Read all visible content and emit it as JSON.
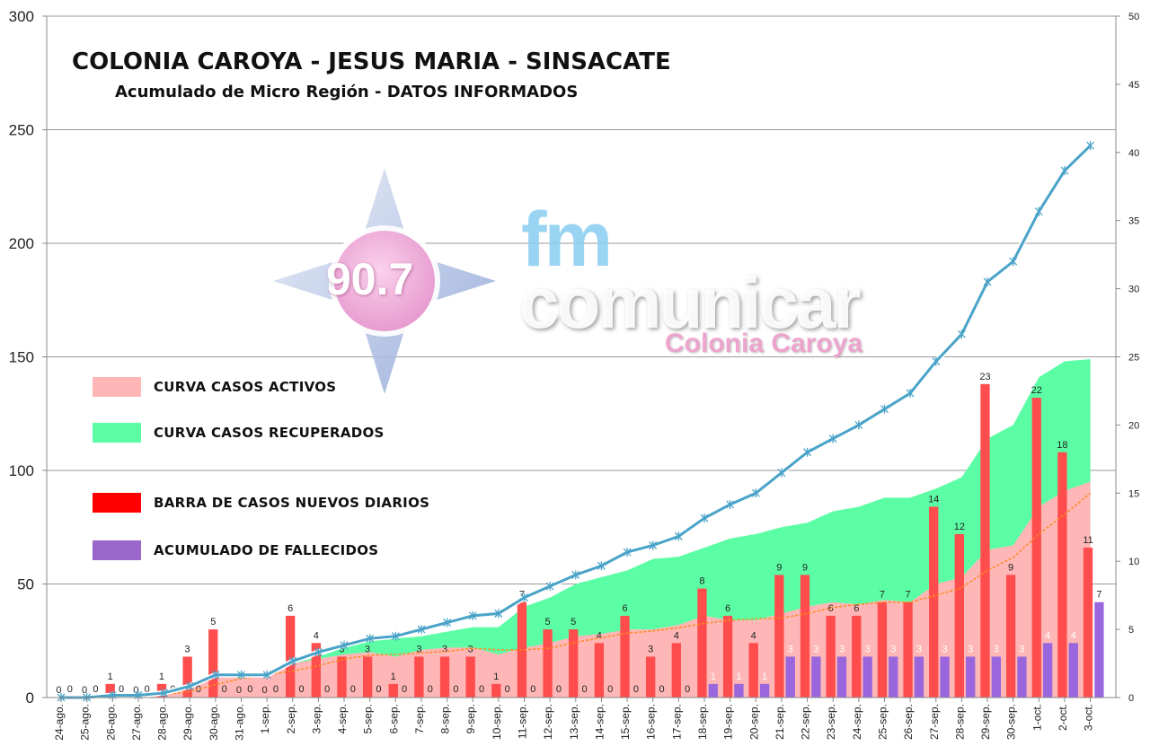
{
  "title": "COLONIA CAROYA - JESUS MARIA - SINSACATE",
  "subtitle": "Acumulado de Micro Región - DATOS INFORMADOS",
  "legend": [
    {
      "label": "CURVA CASOS ACTIVOS",
      "color": "#ffb6b6"
    },
    {
      "label": "CURVA CASOS RECUPERADOS",
      "color": "#5cfea5"
    },
    {
      "label": "BARRA DE CASOS NUEVOS DIARIOS",
      "color": "#ff0000"
    },
    {
      "label": "ACUMULADO DE FALLECIDOS",
      "color": "#9966cc"
    }
  ],
  "watermark": {
    "frequency": "90.7",
    "brand_top": "fm",
    "brand_name": "comunicar",
    "city": "Colonia Caroya"
  },
  "colors": {
    "active_area": "#ffb6b6",
    "recovered_area": "#5cfea5",
    "new_cases_bar": "#ff4c4c",
    "deaths_bar": "#9966dd",
    "total_line": "#4aa3c8",
    "trend_line": "#ff8a1e",
    "grid": "#9a9a9a"
  },
  "chart_data": {
    "type": "bar",
    "categories": [
      "24-ago.",
      "25-ago.",
      "26-ago.",
      "27-ago.",
      "28-ago.",
      "29-ago.",
      "30-ago.",
      "31-ago.",
      "1-sep.",
      "2-sep.",
      "3-sep.",
      "4-sep.",
      "5-sep.",
      "6-sep.",
      "7-sep.",
      "8-sep.",
      "9-sep.",
      "10-sep.",
      "11-sep.",
      "12-sep.",
      "13-sep.",
      "14-sep.",
      "15-sep.",
      "16-sep.",
      "17-sep.",
      "18-sep.",
      "19-sep.",
      "20-sep.",
      "21-sep.",
      "22-sep.",
      "23-sep.",
      "24-sep.",
      "25-sep.",
      "26-sep.",
      "27-sep.",
      "28-sep.",
      "29-sep.",
      "30-sep.",
      "1-oct.",
      "2-oct.",
      "3-oct."
    ],
    "y_left": {
      "min": 0,
      "max": 300,
      "ticks": [
        0,
        50,
        100,
        150,
        200,
        250,
        300
      ]
    },
    "y_right": {
      "min": 0,
      "max": 50,
      "ticks": [
        0,
        5,
        10,
        15,
        20,
        25,
        30,
        35,
        40,
        45,
        50
      ]
    },
    "grid": true,
    "legend_position": "left",
    "series": [
      {
        "name": "CURVA CASOS ACTIVOS",
        "kind": "area",
        "axis": "left",
        "values": [
          0,
          0,
          1,
          1,
          2,
          5,
          10,
          10,
          10,
          15,
          17,
          19,
          20,
          18,
          21,
          22,
          22,
          19,
          22,
          24,
          27,
          28,
          30,
          30,
          32,
          36,
          34,
          34,
          37,
          40,
          42,
          41,
          43,
          42,
          50,
          53,
          65,
          67,
          84,
          91,
          95
        ]
      },
      {
        "name": "CURVA CASOS RECUPERADOS",
        "kind": "area",
        "axis": "left",
        "values": [
          0,
          0,
          1,
          1,
          2,
          5,
          10,
          10,
          10,
          15,
          18,
          22,
          25,
          26,
          27,
          29,
          31,
          31,
          40,
          44,
          50,
          53,
          56,
          61,
          62,
          66,
          70,
          72,
          75,
          77,
          82,
          84,
          88,
          88,
          92,
          97,
          114,
          120,
          141,
          148,
          149
        ]
      },
      {
        "name": "Total",
        "kind": "line",
        "axis": "left",
        "values": [
          0,
          0,
          1,
          1,
          2,
          5,
          10,
          10,
          10,
          16,
          20,
          23,
          26,
          27,
          30,
          33,
          36,
          37,
          44,
          49,
          54,
          58,
          64,
          67,
          71,
          79,
          85,
          90,
          99,
          108,
          114,
          120,
          127,
          134,
          148,
          160,
          183,
          192,
          214,
          232,
          243
        ]
      },
      {
        "name": "BARRA DE CASOS NUEVOS DIARIOS",
        "kind": "bar",
        "axis": "right",
        "values": [
          0,
          0,
          1,
          0,
          1,
          3,
          5,
          0,
          0,
          6,
          4,
          3,
          3,
          1,
          3,
          3,
          3,
          1,
          7,
          5,
          5,
          4,
          6,
          3,
          4,
          8,
          6,
          4,
          9,
          9,
          6,
          6,
          7,
          7,
          14,
          12,
          23,
          9,
          22,
          18,
          11
        ]
      },
      {
        "name": "ACUMULADO DE FALLECIDOS",
        "kind": "bar",
        "axis": "right",
        "values": [
          0,
          0,
          0,
          0,
          0,
          0,
          0,
          0,
          0,
          0,
          0,
          0,
          0,
          0,
          0,
          0,
          0,
          0,
          0,
          0,
          0,
          0,
          0,
          0,
          0,
          1,
          1,
          1,
          3,
          3,
          3,
          3,
          3,
          3,
          3,
          3,
          3,
          3,
          4,
          4,
          7
        ]
      }
    ]
  }
}
